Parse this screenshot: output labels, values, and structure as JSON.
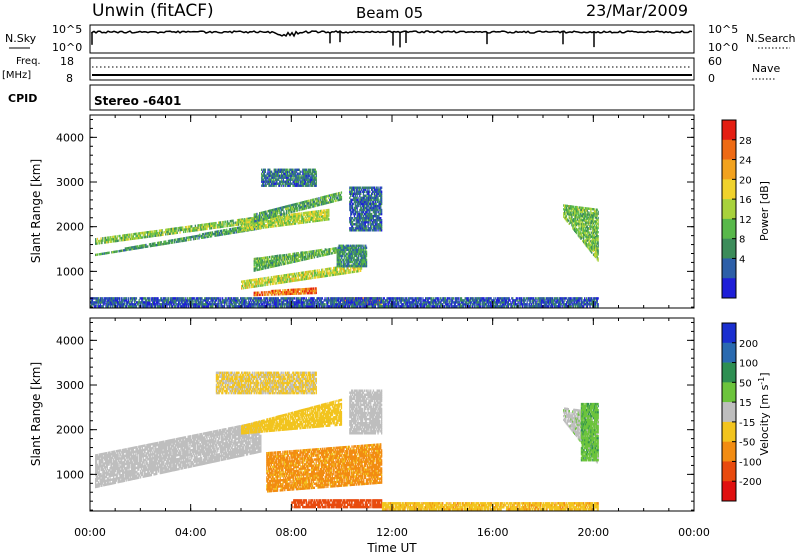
{
  "header": {
    "station": "Unwin (fitACF)",
    "beam": "Beam 05",
    "date": "23/Mar/2009"
  },
  "top_panels": {
    "nsky_label": "N.Sky",
    "nsky_ticks": [
      "10^5",
      "10^0"
    ],
    "nsearch_label": "N.Search",
    "nsearch_ticks": [
      "10^5",
      "10^0"
    ],
    "freq_label": "Freq.",
    "freq_unit": "[MHz]",
    "freq_ticks": [
      "18",
      "8"
    ],
    "nave_label": "Nave",
    "nave_ticks": [
      "60",
      "0"
    ],
    "cpid_label": "CPID",
    "cpid_value": "Stereo -6401"
  },
  "colors": {
    "power": [
      "#1f1fd8",
      "#2d5fa8",
      "#3c8c5a",
      "#58b84a",
      "#a8d23c",
      "#f0d22c",
      "#f2a21e",
      "#ee6a14",
      "#e41e12"
    ],
    "velocity": [
      "#1a2fd0",
      "#2a6ab0",
      "#2e8f52",
      "#6cc43c",
      "#bebebe",
      "#f2c41e",
      "#f28c12",
      "#e84a0e",
      "#e01010"
    ]
  },
  "chart_data": [
    {
      "type": "heatmap",
      "name": "power",
      "title": "",
      "xlabel": "Time UT",
      "ylabel": "Slant Range [km]",
      "x_ticks": [
        "00:00",
        "04:00",
        "08:00",
        "12:00",
        "16:00",
        "20:00",
        "00:00"
      ],
      "xlim_hours": [
        0,
        24
      ],
      "y_ticks": [
        "4000",
        "3000",
        "2000",
        "1000"
      ],
      "ylim": [
        180,
        4500
      ],
      "colorbar_label": "Power [dB]",
      "colorbar_ticks": [
        "28",
        "24",
        "20",
        "16",
        "12",
        "8",
        "4"
      ],
      "colorbar_range": [
        0,
        32
      ],
      "regions": [
        {
          "t": [
            0.2,
            6.8
          ],
          "r0": [
            1350,
            1950
          ],
          "r1": [
            1400,
            2100
          ],
          "value": 10
        },
        {
          "t": [
            0.2,
            6.8
          ],
          "r0": [
            1600,
            2100
          ],
          "r1": [
            1750,
            2250
          ],
          "value": 14
        },
        {
          "t": [
            6.0,
            9.5
          ],
          "r0": [
            1900,
            2150
          ],
          "r1": [
            2150,
            2400
          ],
          "value": 16
        },
        {
          "t": [
            6.5,
            10.0
          ],
          "r0": [
            2100,
            2600
          ],
          "r1": [
            2300,
            2800
          ],
          "value": 11
        },
        {
          "t": [
            6.5,
            10.5
          ],
          "r0": [
            1000,
            1500
          ],
          "r1": [
            1300,
            1600
          ],
          "value": 12
        },
        {
          "t": [
            6.0,
            10.8
          ],
          "r0": [
            600,
            1000
          ],
          "r1": [
            800,
            1200
          ],
          "value": 17
        },
        {
          "t": [
            6.5,
            9.0
          ],
          "r0": [
            450,
            500
          ],
          "r1": [
            550,
            650
          ],
          "value": 26
        },
        {
          "t": [
            9.8,
            11.0
          ],
          "r0": [
            1100,
            1100
          ],
          "r1": [
            1600,
            1600
          ],
          "value": 9
        },
        {
          "t": [
            6.8,
            9.0
          ],
          "r0": [
            2900,
            2900
          ],
          "r1": [
            3300,
            3300
          ],
          "value": 7
        },
        {
          "t": [
            10.0,
            11.6
          ],
          "r0": [
            250,
            250
          ],
          "r1": [
            420,
            420
          ],
          "value": 24
        },
        {
          "t": [
            0.0,
            20.2
          ],
          "r0": [
            200,
            200
          ],
          "r1": [
            420,
            420
          ],
          "value": 5
        },
        {
          "t": [
            18.8,
            20.2
          ],
          "r0": [
            2200,
            1200
          ],
          "r1": [
            2500,
            2400
          ],
          "value": 13
        },
        {
          "t": [
            10.3,
            11.6
          ],
          "r0": [
            1900,
            1900
          ],
          "r1": [
            2900,
            2900
          ],
          "value": 6
        }
      ]
    },
    {
      "type": "heatmap",
      "name": "velocity",
      "title": "",
      "xlabel": "Time UT",
      "ylabel": "Slant Range [km]",
      "x_ticks": [
        "00:00",
        "04:00",
        "08:00",
        "12:00",
        "16:00",
        "20:00",
        "00:00"
      ],
      "xlim_hours": [
        0,
        24
      ],
      "y_ticks": [
        "4000",
        "3000",
        "2000",
        "1000"
      ],
      "ylim": [
        180,
        4500
      ],
      "colorbar_label": "Velocity [m s^-1]",
      "colorbar_ticks": [
        "200",
        "100",
        "50",
        "15",
        "-15",
        "-50",
        "-100",
        "-200"
      ],
      "regions": [
        {
          "t": [
            0.2,
            6.8
          ],
          "r0": [
            700,
            1500
          ],
          "r1": [
            1450,
            2200
          ],
          "value": 0
        },
        {
          "t": [
            6.0,
            10.0
          ],
          "r0": [
            1900,
            2100
          ],
          "r1": [
            2100,
            2700
          ],
          "value": -30
        },
        {
          "t": [
            7.0,
            11.6
          ],
          "r0": [
            600,
            800
          ],
          "r1": [
            1500,
            1700
          ],
          "value": -60
        },
        {
          "t": [
            8.0,
            11.6
          ],
          "r0": [
            250,
            250
          ],
          "r1": [
            450,
            450
          ],
          "value": -120
        },
        {
          "t": [
            11.6,
            20.2
          ],
          "r0": [
            200,
            200
          ],
          "r1": [
            380,
            380
          ],
          "value": -40
        },
        {
          "t": [
            18.8,
            20.2
          ],
          "r0": [
            2200,
            1200
          ],
          "r1": [
            2500,
            2400
          ],
          "value": 5
        },
        {
          "t": [
            19.5,
            20.2
          ],
          "r0": [
            1300,
            1300
          ],
          "r1": [
            2600,
            2600
          ],
          "value": 40
        },
        {
          "t": [
            5.0,
            9.0
          ],
          "r0": [
            2800,
            2800
          ],
          "r1": [
            3300,
            3300
          ],
          "value": -20
        },
        {
          "t": [
            10.3,
            11.6
          ],
          "r0": [
            1900,
            1900
          ],
          "r1": [
            2900,
            2900
          ],
          "value": 0
        }
      ]
    }
  ]
}
